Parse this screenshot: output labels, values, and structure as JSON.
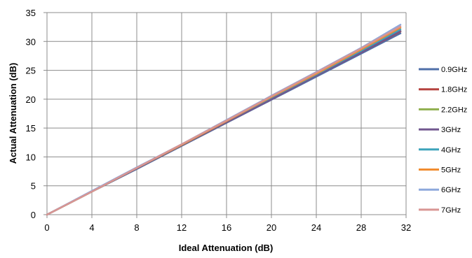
{
  "chart_data": {
    "type": "line",
    "xlabel": "Ideal Attenuation (dB)",
    "ylabel": "Actual Attenuation (dB)",
    "xlim": [
      0,
      32
    ],
    "ylim": [
      0,
      35
    ],
    "x_ticks": [
      "0",
      "4",
      "8",
      "12",
      "16",
      "20",
      "24",
      "28",
      "32"
    ],
    "y_ticks": [
      "0",
      "5",
      "10",
      "15",
      "20",
      "25",
      "30",
      "35"
    ],
    "grid": true,
    "legend_position": "right",
    "series": [
      {
        "name": "0.9GHz",
        "color": "#4F6FA8",
        "x": [
          0,
          4,
          8,
          12,
          16,
          20,
          24,
          28,
          31.5
        ],
        "y": [
          0,
          4.0,
          7.9,
          11.9,
          15.9,
          19.9,
          23.9,
          27.9,
          31.4
        ]
      },
      {
        "name": "1.8GHz",
        "color": "#B5423F",
        "x": [
          0,
          4,
          8,
          12,
          16,
          20,
          24,
          28,
          31.5
        ],
        "y": [
          0,
          4.0,
          8.0,
          12.0,
          16.0,
          20.0,
          24.1,
          28.1,
          31.7
        ]
      },
      {
        "name": "2.2GHz",
        "color": "#8FAF4E",
        "x": [
          0,
          4,
          8,
          12,
          16,
          20,
          24,
          28,
          31.5
        ],
        "y": [
          0,
          4.0,
          8.0,
          12.0,
          16.0,
          20.1,
          24.1,
          28.2,
          31.8
        ]
      },
      {
        "name": "3GHz",
        "color": "#71578F",
        "x": [
          0,
          4,
          8,
          12,
          16,
          20,
          24,
          28,
          31.5
        ],
        "y": [
          0,
          4.0,
          8.0,
          12.0,
          16.0,
          20.0,
          24.1,
          28.1,
          31.8
        ]
      },
      {
        "name": "4GHz",
        "color": "#3DA3BA",
        "x": [
          0,
          4,
          8,
          12,
          16,
          20,
          24,
          28,
          31.5
        ],
        "y": [
          0,
          4.0,
          8.1,
          12.1,
          16.2,
          20.3,
          24.3,
          28.4,
          32.1
        ]
      },
      {
        "name": "5GHz",
        "color": "#F08C30",
        "x": [
          0,
          4,
          8,
          12,
          16,
          20,
          24,
          28,
          31.5
        ],
        "y": [
          0,
          4.0,
          8.1,
          12.1,
          16.2,
          20.4,
          24.4,
          28.6,
          32.4
        ]
      },
      {
        "name": "6GHz",
        "color": "#8DA8DC",
        "x": [
          0,
          4,
          8,
          12,
          16,
          20,
          24,
          28,
          31.5
        ],
        "y": [
          0,
          4.1,
          8.2,
          12.2,
          16.4,
          20.6,
          24.7,
          28.9,
          32.9
        ]
      },
      {
        "name": "7GHz",
        "color": "#D89593",
        "x": [
          0,
          4,
          8,
          12,
          16,
          20,
          24,
          28,
          31.5
        ],
        "y": [
          0,
          4.0,
          8.1,
          12.2,
          16.3,
          20.5,
          24.6,
          28.8,
          32.6
        ]
      }
    ]
  }
}
